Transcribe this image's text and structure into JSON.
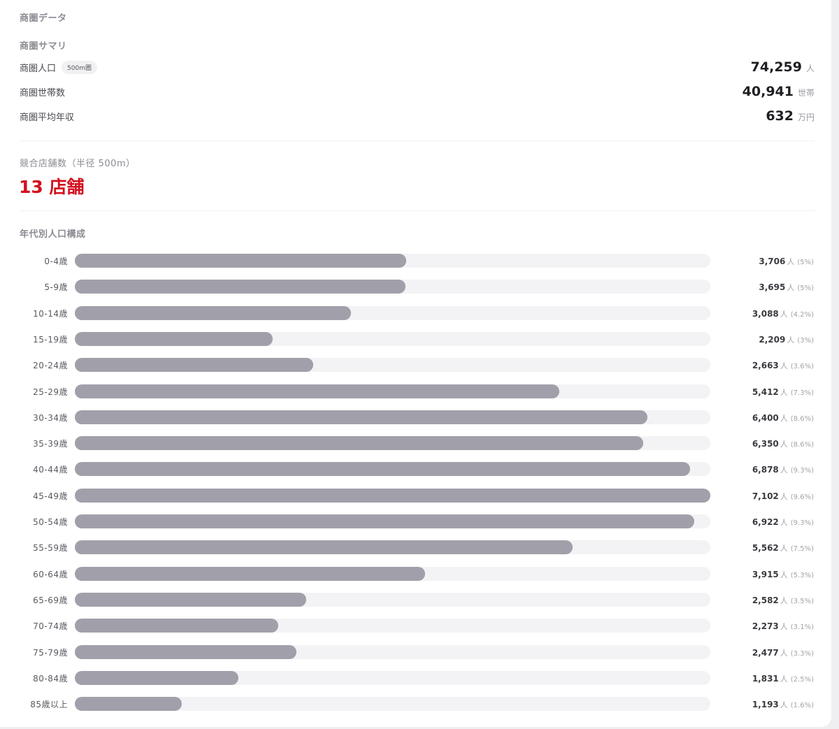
{
  "header": {
    "title": "商圏データ"
  },
  "summary": {
    "title": "商圏サマリ",
    "rows": [
      {
        "label": "商圏人口",
        "badge": "500m圏",
        "value": "74,259",
        "unit": "人"
      },
      {
        "label": "商圏世帯数",
        "badge": "",
        "value": "40,941",
        "unit": "世帯"
      },
      {
        "label": "商圏平均年収",
        "badge": "",
        "value": "632",
        "unit": "万円"
      }
    ]
  },
  "competitors": {
    "label": "競合店舗数（半径 500m）",
    "value": "13 店舗"
  },
  "colors": {
    "accent_red": "#d40f1e",
    "bar_fill": "#a1a0aa",
    "bar_track": "#f3f3f5"
  },
  "chart_data": {
    "type": "bar",
    "orientation": "horizontal",
    "title": "年代別人口構成",
    "unit": "人",
    "xlim": [
      0,
      7102
    ],
    "grid": false,
    "categories": [
      "0-4歳",
      "5-9歳",
      "10-14歳",
      "15-19歳",
      "20-24歳",
      "25-29歳",
      "30-34歳",
      "35-39歳",
      "40-44歳",
      "45-49歳",
      "50-54歳",
      "55-59歳",
      "60-64歳",
      "65-69歳",
      "70-74歳",
      "75-79歳",
      "80-84歳",
      "85歳以上"
    ],
    "values": [
      3706,
      3695,
      3088,
      2209,
      2663,
      5412,
      6400,
      6350,
      6878,
      7102,
      6922,
      5562,
      3915,
      2582,
      2273,
      2477,
      1831,
      1193
    ],
    "value_labels": [
      "3,706",
      "3,695",
      "3,088",
      "2,209",
      "2,663",
      "5,412",
      "6,400",
      "6,350",
      "6,878",
      "7,102",
      "6,922",
      "5,562",
      "3,915",
      "2,582",
      "2,273",
      "2,477",
      "1,831",
      "1,193"
    ],
    "percent_labels": [
      "(5%)",
      "(5%)",
      "(4.2%)",
      "(3%)",
      "(3.6%)",
      "(7.3%)",
      "(8.6%)",
      "(8.6%)",
      "(9.3%)",
      "(9.6%)",
      "(9.3%)",
      "(7.5%)",
      "(5.3%)",
      "(3.5%)",
      "(3.1%)",
      "(3.3%)",
      "(2.5%)",
      "(1.6%)"
    ]
  }
}
